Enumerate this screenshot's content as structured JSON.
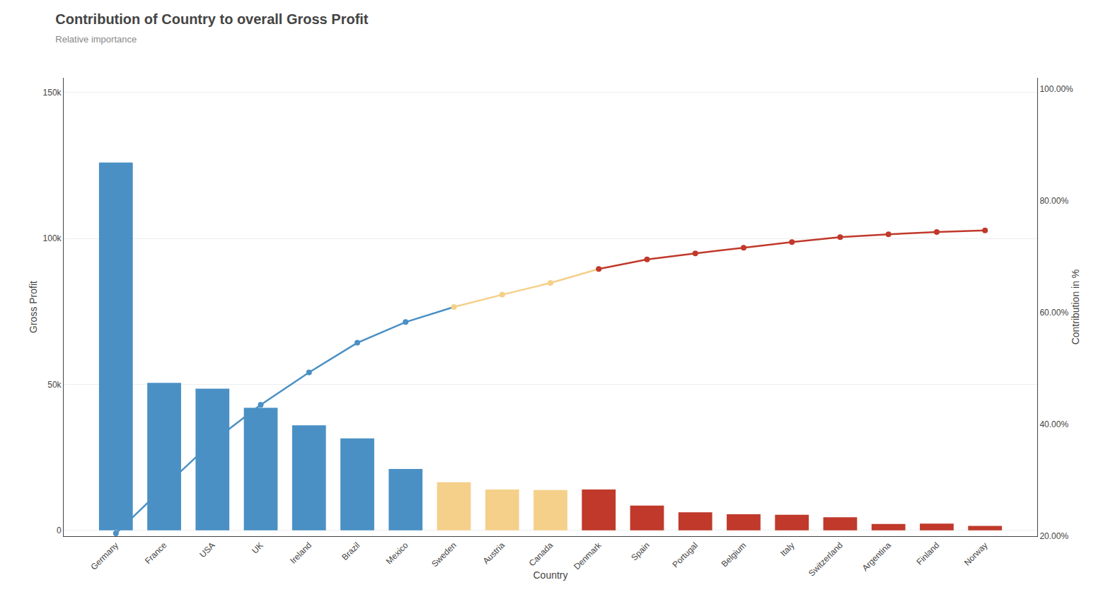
{
  "chart_data": {
    "type": "bar",
    "title": "Contribution of Country to overall Gross Profit",
    "subtitle": "Relative importance",
    "xlabel": "Country",
    "ylabel": "Gross Profit",
    "y2label": "Contribution in %",
    "categories": [
      "Germany",
      "France",
      "USA",
      "UK",
      "Ireland",
      "Brazil",
      "Mexico",
      "Sweden",
      "Austria",
      "Canada",
      "Denmark",
      "Spain",
      "Portugal",
      "Belgium",
      "Italy",
      "Switzerland",
      "Argentina",
      "Finland",
      "Norway"
    ],
    "series": [
      {
        "type": "bar",
        "values": [
          126000,
          50500,
          48500,
          42000,
          36000,
          31500,
          21000,
          16500,
          14000,
          13800,
          14000,
          8500,
          6200,
          5500,
          5300,
          4500,
          2200,
          2300,
          1500
        ],
        "colors": [
          "#4A90C4",
          "#4A90C4",
          "#4A90C4",
          "#4A90C4",
          "#4A90C4",
          "#4A90C4",
          "#4A90C4",
          "#F5D08A",
          "#F5D08A",
          "#F5D08A",
          "#C0392B",
          "#C0392B",
          "#C0392B",
          "#C0392B",
          "#C0392B",
          "#C0392B",
          "#C0392B",
          "#C0392B",
          "#C0392B"
        ]
      },
      {
        "type": "line",
        "axis": "y2",
        "marker": "circle",
        "values": [
          20.5,
          28.8,
          36.9,
          43.5,
          49.3,
          54.6,
          58.3,
          61.0,
          63.2,
          65.3,
          67.8,
          69.5,
          70.6,
          71.6,
          72.6,
          73.5,
          74.0,
          74.4,
          74.7
        ],
        "colors": [
          "#4A90C4",
          "#4A90C4",
          "#4A90C4",
          "#4A90C4",
          "#4A90C4",
          "#4A90C4",
          "#4A90C4",
          "#F5D08A",
          "#F5D08A",
          "#F5D08A",
          "#C0392B",
          "#C0392B",
          "#C0392B",
          "#C0392B",
          "#C0392B",
          "#C0392B",
          "#C0392B",
          "#C0392B",
          "#C0392B"
        ]
      }
    ],
    "ylim": [
      -2000,
      155000
    ],
    "yticks": [
      0,
      {
        "value": 50000,
        "label": "50k"
      },
      {
        "value": 100000,
        "label": "100k"
      },
      {
        "value": 150000,
        "label": "150k"
      }
    ],
    "y2lim": [
      20.0,
      102.0
    ],
    "y2ticks": [
      {
        "value": 20.0,
        "label": "20.00%"
      },
      {
        "value": 40.0,
        "label": "40.00%"
      },
      {
        "value": 60.0,
        "label": "60.00%"
      },
      {
        "value": 80.0,
        "label": "80.00%"
      },
      {
        "value": 100.0,
        "label": "100.00%"
      }
    ],
    "grid": true
  }
}
